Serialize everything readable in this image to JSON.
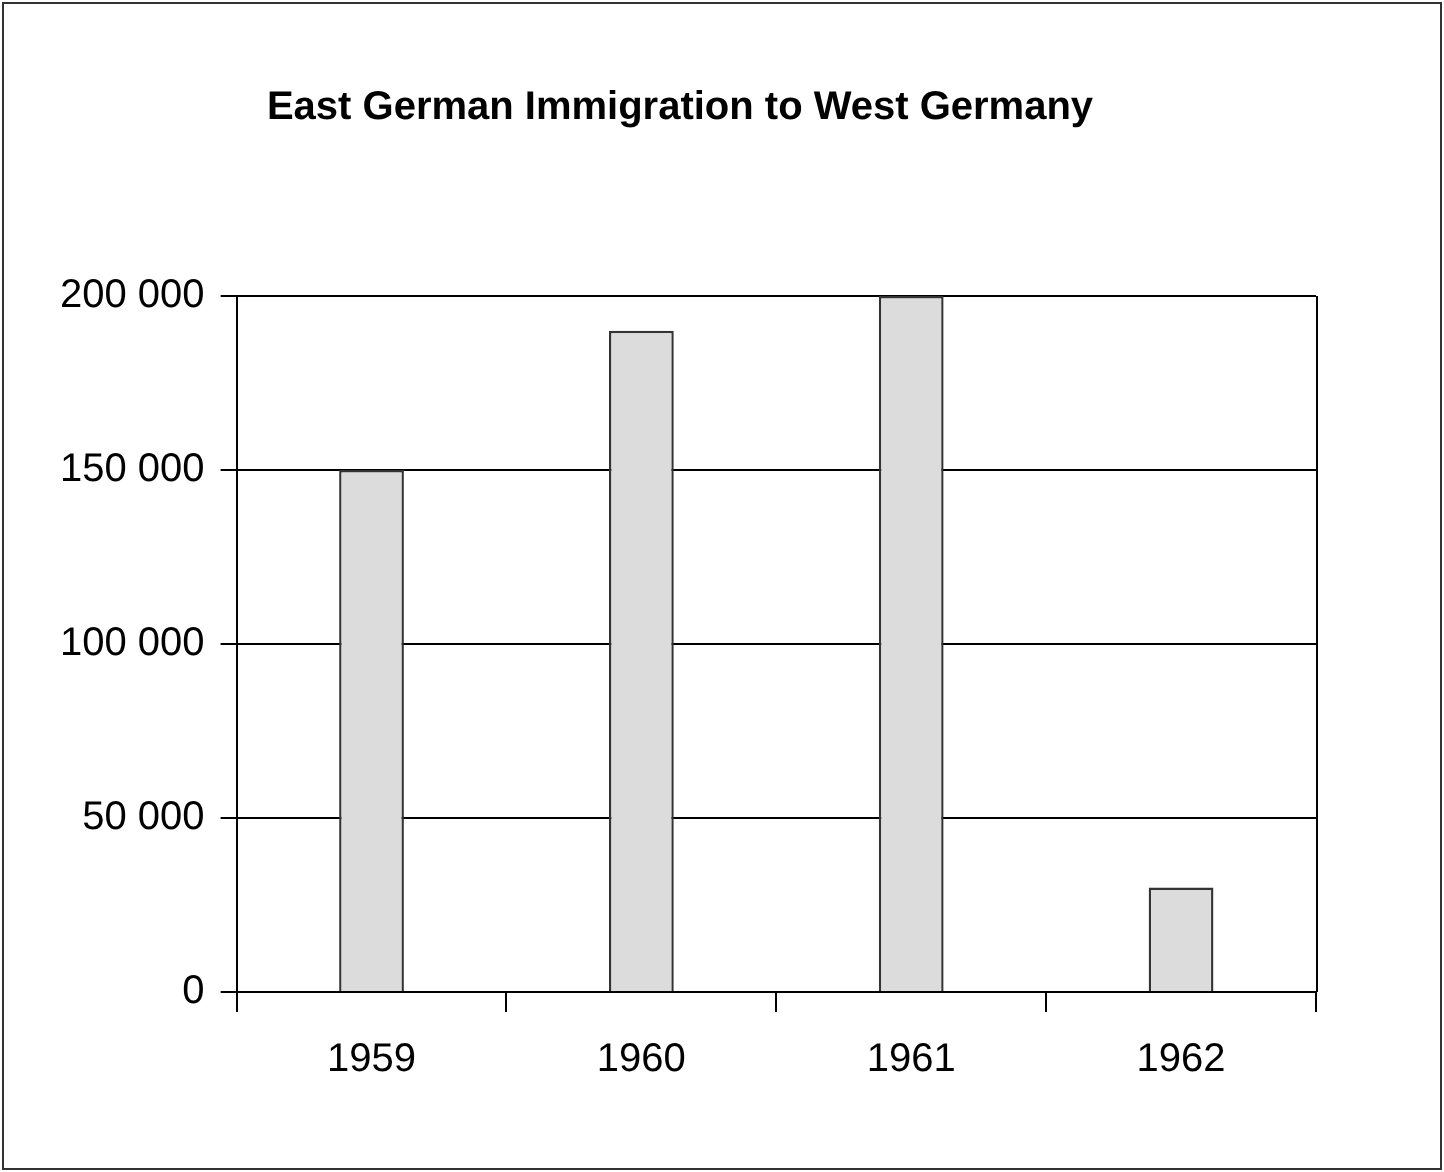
{
  "chart_data": {
    "type": "bar",
    "title": "East German Immigration to West Germany",
    "categories": [
      "1959",
      "1960",
      "1961",
      "1962"
    ],
    "values": [
      150000,
      190000,
      200000,
      30000
    ],
    "color": "#dcdcdd",
    "ylim": [
      0,
      200000
    ],
    "yticks": [
      {
        "value": 0,
        "label": "0"
      },
      {
        "value": 50000,
        "label": "50 000"
      },
      {
        "value": 100000,
        "label": "100 000"
      },
      {
        "value": 150000,
        "label": "150 000"
      },
      {
        "value": 200000,
        "label": "200 000"
      }
    ],
    "grid": "y",
    "legend": false
  }
}
